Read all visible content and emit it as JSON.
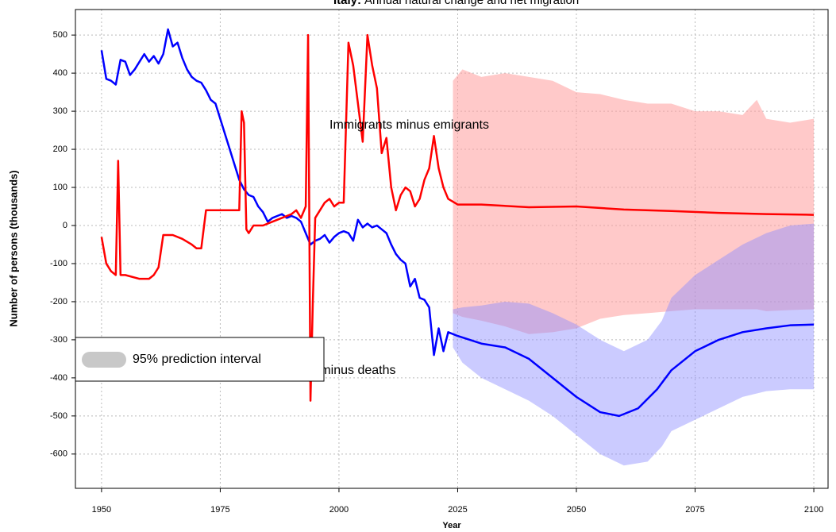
{
  "chart_data": {
    "type": "line",
    "title_prefix": "Italy:",
    "title": "Annual natural change and net migration",
    "x_label": "Year",
    "y_label": "Number of persons (thousands)",
    "xlim": [
      1944.5,
      2103
    ],
    "ylim": [
      -690,
      567
    ],
    "xticks": [
      1950,
      1975,
      2000,
      2025,
      2050,
      2075,
      2100
    ],
    "yticks": [
      -600,
      -500,
      -400,
      -300,
      -200,
      -100,
      0,
      100,
      200,
      300,
      400,
      500
    ],
    "grid": true,
    "legend": {
      "label": "95% prediction interval",
      "color": "#c8c8c8",
      "position": "lower left"
    },
    "annotations": [
      "Immigrants minus emigrants",
      "Births minus deaths"
    ],
    "bands": [
      {
        "color": "#ff9d9d",
        "opacity": 0.55,
        "x": [
          2024,
          2026,
          2030,
          2035,
          2040,
          2045,
          2050,
          2055,
          2060,
          2065,
          2070,
          2075,
          2080,
          2085,
          2088,
          2090,
          2095,
          2100
        ],
        "upper": [
          380,
          410,
          390,
          400,
          390,
          380,
          350,
          345,
          330,
          320,
          320,
          300,
          300,
          290,
          330,
          280,
          270,
          280
        ],
        "lower": [
          -230,
          -240,
          -250,
          -265,
          -285,
          -280,
          -270,
          -245,
          -235,
          -230,
          -225,
          -220,
          -220,
          -220,
          -220,
          -225,
          -222,
          -220
        ]
      },
      {
        "color": "#8c8cff",
        "opacity": 0.45,
        "x": [
          2024,
          2026,
          2030,
          2035,
          2040,
          2045,
          2050,
          2055,
          2060,
          2065,
          2068,
          2070,
          2075,
          2080,
          2085,
          2090,
          2095,
          2100
        ],
        "upper": [
          -220,
          -215,
          -210,
          -200,
          -205,
          -230,
          -260,
          -300,
          -330,
          -300,
          -250,
          -190,
          -130,
          -90,
          -50,
          -20,
          0,
          5
        ],
        "lower": [
          -320,
          -360,
          -400,
          -430,
          -460,
          -500,
          -550,
          -600,
          -630,
          -620,
          -580,
          -540,
          -510,
          -480,
          -450,
          -435,
          -430,
          -430
        ]
      }
    ],
    "series": [
      {
        "name": "Births minus deaths",
        "color": "#0000ff",
        "x": [
          1950,
          1951,
          1952,
          1953,
          1954,
          1955,
          1956,
          1957,
          1958,
          1959,
          1960,
          1961,
          1962,
          1963,
          1964,
          1965,
          1966,
          1967,
          1968,
          1969,
          1970,
          1971,
          1972,
          1973,
          1974,
          1975,
          1976,
          1977,
          1978,
          1979,
          1980,
          1981,
          1982,
          1983,
          1984,
          1985,
          1986,
          1987,
          1988,
          1989,
          1990,
          1991,
          1992,
          1993,
          1994,
          1995,
          1996,
          1997,
          1998,
          1999,
          2000,
          2001,
          2002,
          2003,
          2004,
          2005,
          2006,
          2007,
          2008,
          2009,
          2010,
          2011,
          2012,
          2013,
          2014,
          2015,
          2016,
          2017,
          2018,
          2019,
          2020,
          2021,
          2022,
          2023,
          2025,
          2030,
          2035,
          2040,
          2045,
          2050,
          2055,
          2059,
          2063,
          2067,
          2070,
          2075,
          2080,
          2085,
          2090,
          2095,
          2100
        ],
        "values": [
          460,
          385,
          380,
          370,
          435,
          430,
          395,
          410,
          430,
          450,
          430,
          445,
          425,
          450,
          515,
          470,
          480,
          440,
          410,
          390,
          380,
          375,
          355,
          330,
          320,
          280,
          240,
          200,
          160,
          120,
          95,
          80,
          75,
          50,
          35,
          10,
          20,
          25,
          30,
          20,
          25,
          20,
          10,
          -20,
          -50,
          -40,
          -35,
          -25,
          -45,
          -30,
          -20,
          -15,
          -20,
          -40,
          15,
          -5,
          5,
          -5,
          0,
          -10,
          -20,
          -50,
          -75,
          -90,
          -100,
          -160,
          -140,
          -190,
          -195,
          -215,
          -340,
          -270,
          -330,
          -280,
          -290,
          -310,
          -320,
          -350,
          -400,
          -450,
          -490,
          -500,
          -480,
          -430,
          -380,
          -330,
          -300,
          -280,
          -270,
          -262,
          -260
        ]
      },
      {
        "name": "Immigrants minus emigrants",
        "color": "#ff0000",
        "x": [
          1950,
          1951,
          1952,
          1953,
          1953.5,
          1954,
          1955,
          1958,
          1960,
          1961,
          1962,
          1963,
          1965,
          1967,
          1969,
          1970,
          1971,
          1972,
          1975,
          1979,
          1979.5,
          1980,
          1980.5,
          1981,
          1982,
          1984,
          1986,
          1988,
          1990,
          1991,
          1992,
          1993,
          1993.5,
          1994,
          1994.5,
          1995,
          1996,
          1997,
          1998,
          1999,
          2000,
          2001,
          2002,
          2003,
          2004,
          2005,
          2006,
          2007,
          2008,
          2009,
          2010,
          2011,
          2012,
          2013,
          2014,
          2015,
          2016,
          2017,
          2018,
          2019,
          2020,
          2021,
          2022,
          2023,
          2025,
          2030,
          2040,
          2050,
          2060,
          2070,
          2080,
          2090,
          2100
        ],
        "values": [
          -30,
          -100,
          -120,
          -130,
          170,
          -130,
          -130,
          -140,
          -140,
          -130,
          -110,
          -25,
          -25,
          -35,
          -50,
          -60,
          -60,
          40,
          40,
          40,
          300,
          270,
          -10,
          -20,
          0,
          0,
          10,
          20,
          30,
          40,
          20,
          50,
          500,
          -460,
          -200,
          20,
          40,
          60,
          70,
          50,
          60,
          60,
          480,
          420,
          320,
          220,
          500,
          420,
          360,
          190,
          230,
          100,
          40,
          80,
          100,
          90,
          50,
          70,
          120,
          150,
          235,
          150,
          100,
          70,
          55,
          55,
          48,
          50,
          42,
          38,
          33,
          30,
          28
        ]
      }
    ]
  }
}
